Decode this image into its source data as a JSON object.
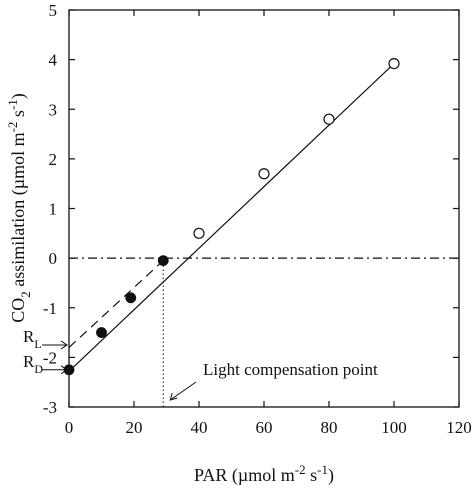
{
  "chart_data": {
    "type": "scatter",
    "x_axis": {
      "label": "PAR (µmol m",
      "label_exp": "-2",
      "label_unit2": " s",
      "label_exp2": "-1",
      "label_close": ")",
      "range": [
        0,
        120
      ],
      "ticks": [
        0,
        20,
        40,
        60,
        80,
        100,
        120
      ]
    },
    "y_axis": {
      "label_pre": "CO",
      "label_sub": "2",
      "label_mid": " assimilation (µmol m",
      "label_exp": "-2",
      "label_unit2": " s",
      "label_exp2": "-1",
      "label_close": ")",
      "range": [
        -3,
        5
      ],
      "ticks": [
        -3,
        -2,
        -1,
        0,
        1,
        2,
        3,
        4,
        5
      ]
    },
    "series": [
      {
        "marker": "filled-circle",
        "points": [
          [
            0,
            -2.25
          ],
          [
            10,
            -1.5
          ],
          [
            19,
            -0.8
          ],
          [
            29,
            -0.05
          ]
        ]
      },
      {
        "marker": "open-circle",
        "points": [
          [
            40,
            0.5
          ],
          [
            60,
            1.7
          ],
          [
            80,
            2.8
          ],
          [
            100,
            3.92
          ]
        ]
      }
    ],
    "lines": [
      {
        "style": "solid",
        "from": [
          0,
          -2.28
        ],
        "to": [
          100,
          3.92
        ]
      },
      {
        "style": "dashed",
        "from": [
          0,
          -1.8
        ],
        "to": [
          29,
          -0.05
        ]
      },
      {
        "style": "dash-dot",
        "from": [
          0,
          0
        ],
        "to": [
          120,
          0
        ]
      },
      {
        "style": "dotted",
        "from": [
          29,
          -3
        ],
        "to": [
          29,
          -0.05
        ]
      }
    ],
    "annotations": [
      {
        "label": "R",
        "sub": "L",
        "value": -1.75
      },
      {
        "label": "R",
        "sub": "D",
        "value": -2.25
      },
      {
        "label": "Light compensation point",
        "x": 29
      }
    ]
  }
}
